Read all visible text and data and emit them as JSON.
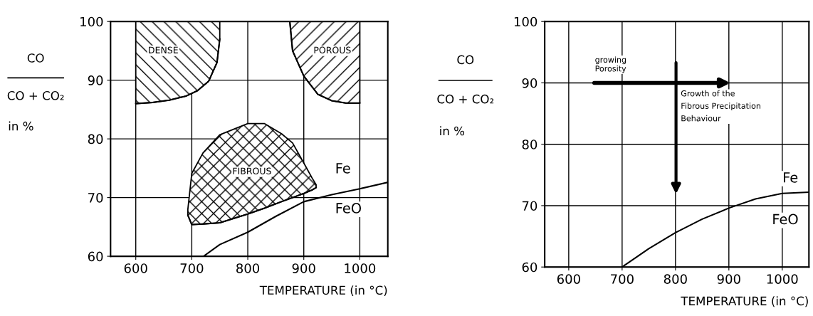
{
  "chart_data": [
    {
      "type": "line",
      "xlabel": "TEMPERATURE (in °C)",
      "ylabel": "CO\nCO + CO₂\nin %",
      "xlim": [
        555,
        1050
      ],
      "ylim": [
        60,
        100
      ],
      "xticks": [
        600,
        700,
        800,
        900,
        1000
      ],
      "yticks": [
        60,
        70,
        80,
        90,
        100
      ],
      "grid": true,
      "series": [
        {
          "type": "line",
          "color": "#000000",
          "x": [
            721,
            750,
            800,
            850,
            900,
            950,
            1000,
            1050
          ],
          "values": [
            60,
            62.0,
            64.1,
            66.8,
            69.3,
            70.5,
            71.5,
            72.6
          ]
        },
        {
          "type": "line",
          "color": "#000000",
          "x": [
            600,
            630,
            660,
            690,
            710,
            730,
            745,
            750
          ],
          "values": [
            86.0,
            86.2,
            86.6,
            87.3,
            88.2,
            89.8,
            93.0,
            97.0
          ],
          "lower": [
            86.0,
            86.2,
            86.6,
            87.3,
            88.2,
            89.8,
            93.0,
            97.0
          ],
          "upper": [
            100,
            100,
            100,
            100,
            100,
            100,
            100,
            100
          ]
        },
        {
          "type": "line",
          "color": "#000000",
          "x": [
            875,
            880,
            900,
            925,
            950,
            975,
            1000
          ],
          "values": [
            100,
            95.0,
            90.7,
            87.6,
            86.5,
            86.1,
            86.1
          ],
          "lower": [
            100,
            95.0,
            90.7,
            87.6,
            86.5,
            86.1,
            86.1
          ],
          "upper": [
            100,
            100,
            100,
            100,
            100,
            100,
            100
          ]
        },
        {
          "type": "line",
          "color": "#000000",
          "x": [
            693,
            700,
            720,
            750,
            800,
            830,
            860,
            880,
            900,
            915,
            922
          ],
          "values": [
            67.0,
            65.4,
            65.5,
            65.7,
            67.2,
            68.2,
            69.3,
            70.0,
            70.7,
            71.3,
            71.7
          ],
          "lower": [
            67.0,
            65.4,
            65.5,
            65.7,
            67.2,
            68.2,
            69.3,
            70.0,
            70.7,
            71.3,
            71.7
          ],
          "upper": [
            68.0,
            74.1,
            77.6,
            80.7,
            82.6,
            82.6,
            80.9,
            79.3,
            75.9,
            73.3,
            72.2
          ]
        }
      ],
      "annotations": [
        "DENSE",
        "POROUS",
        "FIBROUS",
        "Fe",
        "FeO"
      ]
    },
    {
      "type": "line",
      "xlabel": "TEMPERATURE (in °C)",
      "ylabel": "CO\nCO + CO₂\nin %",
      "xlim": [
        555,
        1050
      ],
      "ylim": [
        60,
        100
      ],
      "xticks": [
        600,
        700,
        800,
        900,
        1000
      ],
      "yticks": [
        60,
        70,
        80,
        90,
        100
      ],
      "grid": true,
      "series": [
        {
          "type": "line",
          "color": "#000000",
          "x": [
            700,
            750,
            800,
            850,
            900,
            950,
            1000,
            1050
          ],
          "values": [
            60,
            63.0,
            65.6,
            67.8,
            69.6,
            71.1,
            72.0,
            72.2
          ]
        }
      ],
      "annotations": [
        "growing\nPorosity",
        "Growth of the\nFibrous Precipitation\nBehaviour",
        "Fe",
        "FeO"
      ]
    }
  ]
}
